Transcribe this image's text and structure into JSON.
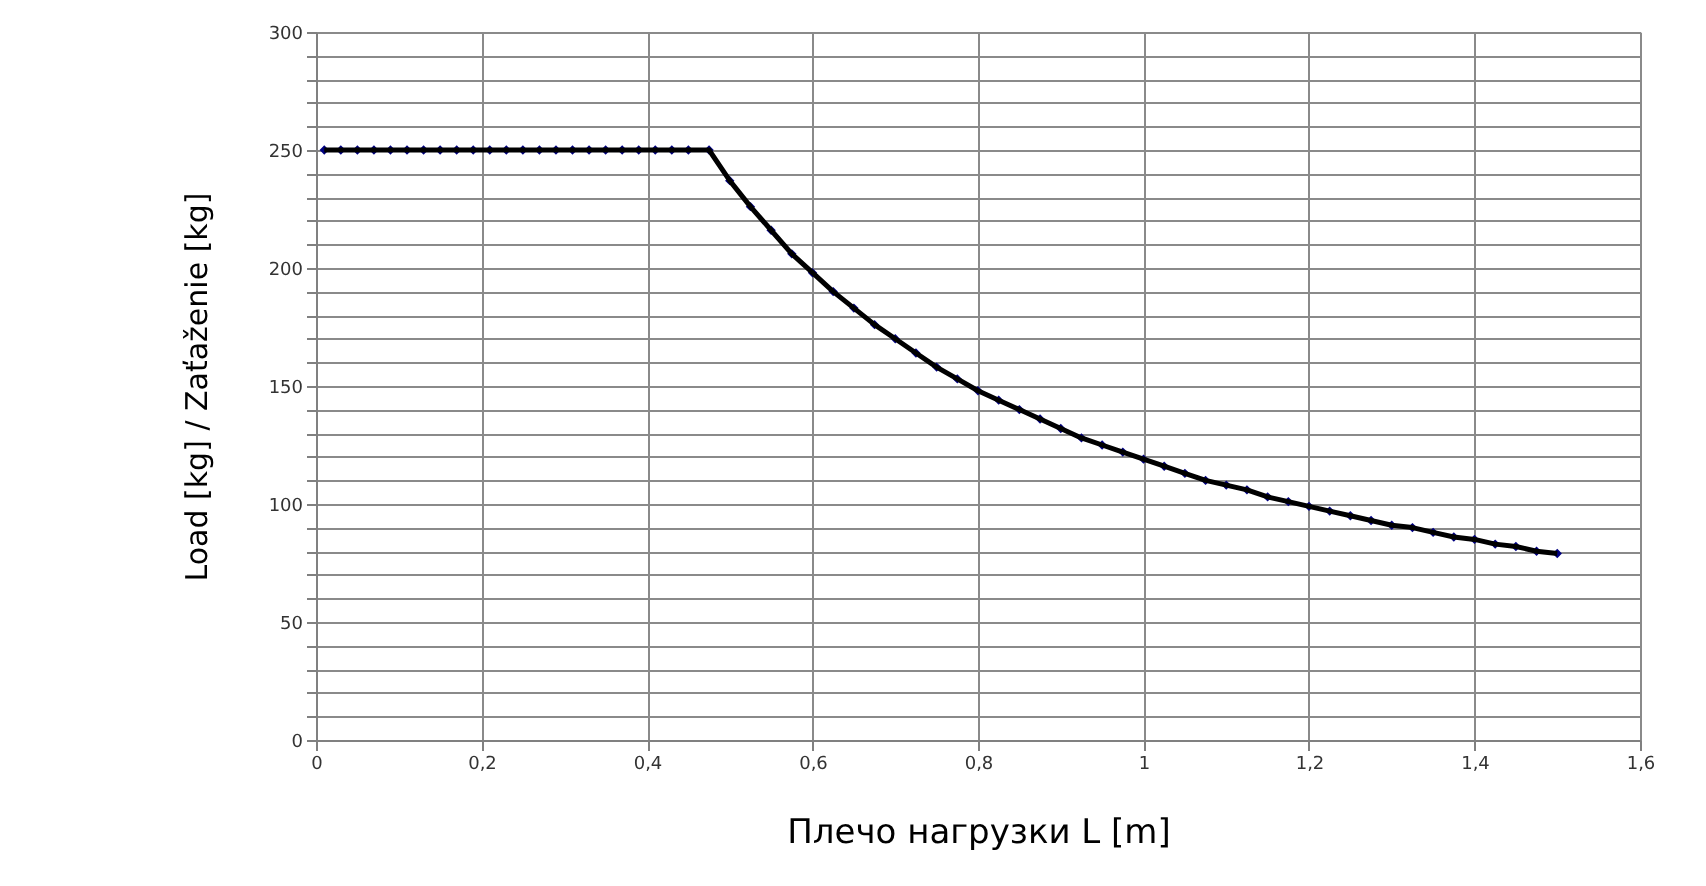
{
  "chart_data": {
    "type": "line",
    "xlabel": "Плечо нагрузки L [m]",
    "ylabel": "Load [kg] / Zaťaženie [kg]",
    "x": [
      0.01,
      0.03,
      0.05,
      0.07,
      0.09,
      0.11,
      0.13,
      0.15,
      0.17,
      0.19,
      0.21,
      0.23,
      0.25,
      0.27,
      0.29,
      0.31,
      0.33,
      0.35,
      0.37,
      0.39,
      0.41,
      0.43,
      0.45,
      0.475,
      0.5,
      0.525,
      0.55,
      0.575,
      0.6,
      0.625,
      0.65,
      0.675,
      0.7,
      0.725,
      0.75,
      0.775,
      0.8,
      0.825,
      0.85,
      0.875,
      0.9,
      0.925,
      0.95,
      0.975,
      1.0,
      1.025,
      1.05,
      1.075,
      1.1,
      1.125,
      1.15,
      1.175,
      1.2,
      1.225,
      1.25,
      1.275,
      1.3,
      1.325,
      1.35,
      1.375,
      1.4,
      1.425,
      1.45,
      1.475,
      1.5
    ],
    "series": [
      {
        "type": "scatter",
        "marker": "diamond",
        "color": "#000080",
        "values": [
          250,
          250,
          250,
          250,
          250,
          250,
          250,
          250,
          250,
          250,
          250,
          250,
          250,
          250,
          250,
          250,
          250,
          250,
          250,
          250,
          250,
          250,
          250,
          250,
          237,
          226,
          216,
          206,
          198,
          190,
          183,
          176,
          170,
          164,
          158,
          153,
          148,
          144,
          140,
          136,
          132,
          128,
          125,
          122,
          119,
          116,
          113,
          110,
          108,
          106,
          103,
          101,
          99,
          97,
          95,
          93,
          91,
          90,
          88,
          86,
          85,
          83,
          82,
          80,
          79
        ]
      },
      {
        "marker": "none",
        "line_style": "solid",
        "color": "#000000",
        "values": [
          250,
          250,
          250,
          250,
          250,
          250,
          250,
          250,
          250,
          250,
          250,
          250,
          250,
          250,
          250,
          250,
          250,
          250,
          250,
          250,
          250,
          250,
          250,
          250,
          237,
          226,
          216,
          206,
          198,
          190,
          183,
          176,
          170,
          164,
          158,
          153,
          148,
          144,
          140,
          136,
          132,
          128,
          125,
          122,
          119,
          116,
          113,
          110,
          108,
          106,
          103,
          101,
          99,
          97,
          95,
          93,
          91,
          90,
          88,
          86,
          85,
          83,
          82,
          80,
          79
        ]
      }
    ],
    "xlim": [
      0,
      1.6
    ],
    "xticks": [
      0,
      {
        "value": 0.2,
        "label": "0,2"
      },
      {
        "value": 0.4,
        "label": "0,4"
      },
      {
        "value": 0.6,
        "label": "0,6"
      },
      {
        "value": 0.8,
        "label": "0,8"
      },
      1,
      {
        "value": 1.2,
        "label": "1,2"
      },
      {
        "value": 1.4,
        "label": "1,4"
      },
      {
        "value": 1.6,
        "label": "1,6"
      }
    ],
    "ylim": [
      0,
      300
    ],
    "yticks": [
      0,
      {
        "value": 10,
        "label": null
      },
      {
        "value": 20,
        "label": null
      },
      {
        "value": 30,
        "label": null
      },
      {
        "value": 40,
        "label": null
      },
      50,
      {
        "value": 60,
        "label": null
      },
      {
        "value": 70,
        "label": null
      },
      {
        "value": 80,
        "label": null
      },
      {
        "value": 90,
        "label": null
      },
      100,
      {
        "value": 110,
        "label": null
      },
      {
        "value": 120,
        "label": null
      },
      {
        "value": 130,
        "label": null
      },
      {
        "value": 140,
        "label": null
      },
      150,
      {
        "value": 160,
        "label": null
      },
      {
        "value": 170,
        "label": null
      },
      {
        "value": 180,
        "label": null
      },
      {
        "value": 190,
        "label": null
      },
      200,
      {
        "value": 210,
        "label": null
      },
      {
        "value": 220,
        "label": null
      },
      {
        "value": 230,
        "label": null
      },
      {
        "value": 240,
        "label": null
      },
      250,
      {
        "value": 260,
        "label": null
      },
      {
        "value": 270,
        "label": null
      },
      {
        "value": 280,
        "label": null
      },
      {
        "value": 290,
        "label": null
      },
      300
    ],
    "grid": true
  }
}
